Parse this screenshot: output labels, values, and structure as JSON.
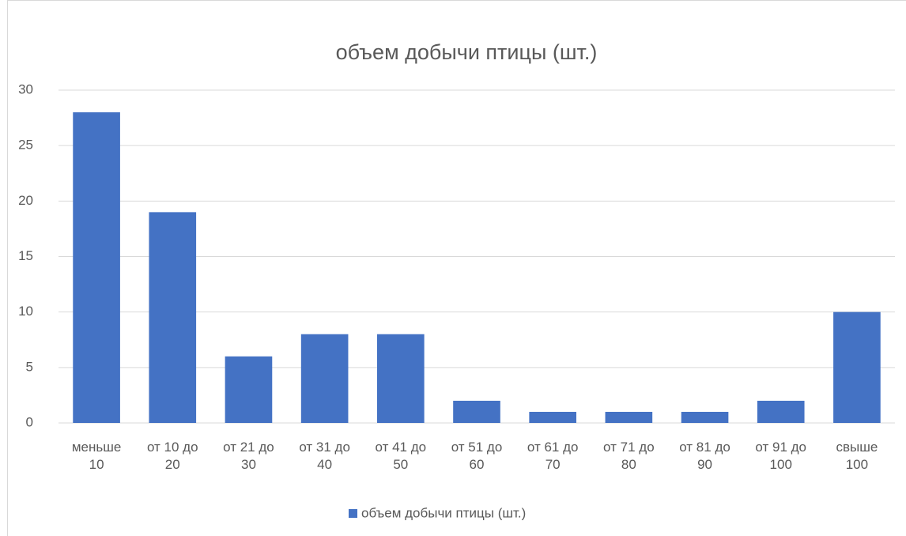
{
  "chart_data": {
    "type": "bar",
    "title": "объем добычи птицы (шт.)",
    "categories": [
      "меньше 10",
      "от 10 до 20",
      "от 21 до 30",
      "от 31 до 40",
      "от 41 до 50",
      "от 51 до 60",
      "от 61 до 70",
      "от 71 до 80",
      "от 81 до 90",
      "от 91 до 100",
      "свыше 100"
    ],
    "series": [
      {
        "name": "объем добычи птицы (шт.)",
        "color": "#4472c4",
        "values": [
          28,
          19,
          6,
          8,
          8,
          2,
          1,
          1,
          1,
          2,
          10
        ]
      }
    ],
    "ylim": [
      0,
      30
    ],
    "yticks": [
      0,
      5,
      10,
      15,
      20,
      25,
      30
    ],
    "grid": true,
    "legend": "bottom"
  }
}
